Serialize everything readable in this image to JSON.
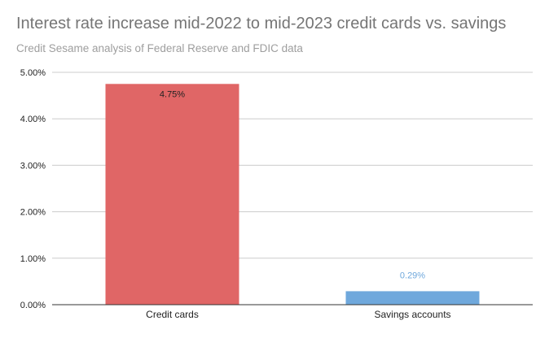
{
  "chart_data": {
    "type": "bar",
    "title": "Interest rate increase mid-2022 to mid-2023 credit cards vs. savings",
    "subtitle": "Credit Sesame analysis of Federal Reserve and FDIC data",
    "categories": [
      "Credit cards",
      "Savings accounts"
    ],
    "values": [
      4.75,
      0.29
    ],
    "data_labels": [
      "4.75%",
      "0.29%"
    ],
    "bar_colors": [
      "#e06666",
      "#6fa8dc"
    ],
    "label_colors": [
      "#222222",
      "#6fa8dc"
    ],
    "yticks": [
      "0.00%",
      "1.00%",
      "2.00%",
      "3.00%",
      "4.00%",
      "5.00%"
    ],
    "ylim": [
      0,
      5
    ],
    "grid": true,
    "xlabel": "",
    "ylabel": ""
  }
}
